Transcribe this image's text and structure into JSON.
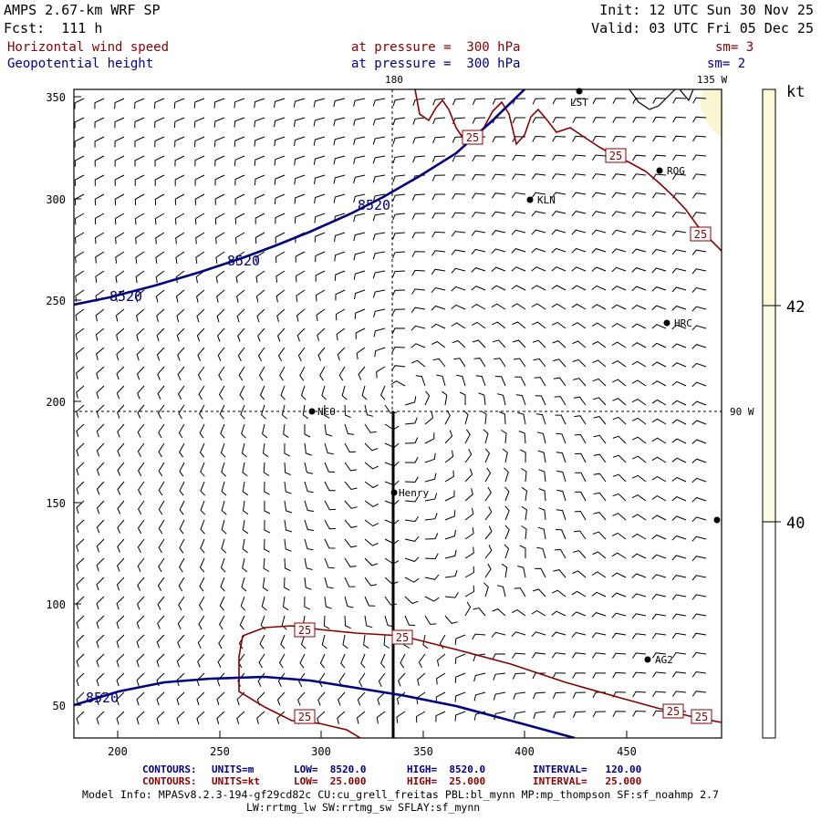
{
  "header": {
    "model": "AMPS 2.67-km WRF SP",
    "fcst": "Fcst:  111 h",
    "init": "Init: 12 UTC Sun 30 Nov 25",
    "valid": "Valid: 03 UTC Fri 05 Dec 25",
    "field1_name": "Horizontal wind speed",
    "field1_level": "at pressure =  300 hPa",
    "field1_sm": "sm= 3",
    "field2_name": "Geopotential height",
    "field2_level": "at pressure =  300 hPa",
    "field2_sm": "sm= 2"
  },
  "map": {
    "x_ticks": [
      "200",
      "250",
      "300",
      "350",
      "400",
      "450"
    ],
    "y_ticks": [
      "350",
      "300",
      "250",
      "200",
      "150",
      "100",
      "50"
    ],
    "meridian_labels": {
      "m180": "180",
      "m135w": "135 W",
      "m90w": "90 W"
    },
    "stations": [
      {
        "name": "LST"
      },
      {
        "name": "ROG"
      },
      {
        "name": "KLN"
      },
      {
        "name": "HRC"
      },
      {
        "name": "NCO"
      },
      {
        "name": "Henry"
      },
      {
        "name": "AG2"
      },
      {
        "name": ""
      }
    ],
    "height_contour_label": "8520",
    "speed_contour_label": "25",
    "colors": {
      "height": "#000080",
      "speed": "#8b0000",
      "barbs": "#000000",
      "shade": "#fbf6d2"
    }
  },
  "colorbar": {
    "unit": "kt",
    "labels": [
      "42",
      "40"
    ]
  },
  "footer": {
    "row1": {
      "label": "CONTOURS:",
      "units": "UNITS=m",
      "low": "LOW=  8520.0",
      "high": "HIGH=  8520.0",
      "interval": "INTERVAL=   120.00"
    },
    "row2": {
      "label": "CONTOURS:",
      "units": "UNITS=kt",
      "low": "LOW=  25.000",
      "high": "HIGH=  25.000",
      "interval": "INTERVAL=   25.000"
    },
    "model_info_1": "Model Info: MPASv8.2.3-194-gf29cd82c CU:cu_grell_freitas PBL:bl_mynn MP:mp_thompson SF:sf_noahmp 2.7",
    "model_info_2": "LW:rrtmg_lw SW:rrtmg_sw SFLAY:sf_mynn"
  }
}
